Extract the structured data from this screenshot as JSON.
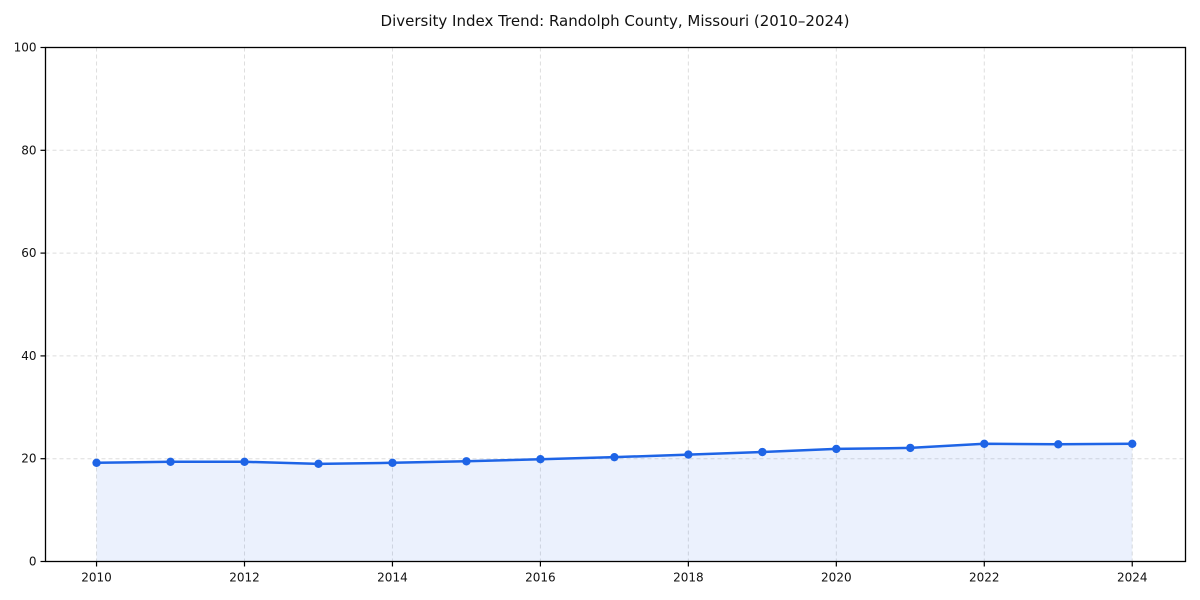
{
  "chart_data": {
    "type": "line",
    "title": "Diversity Index Trend: Randolph County, Missouri (2010–2024)",
    "x": [
      2010,
      2011,
      2012,
      2013,
      2014,
      2015,
      2016,
      2017,
      2018,
      2019,
      2020,
      2021,
      2022,
      2023,
      2024
    ],
    "series": [
      {
        "name": "Diversity Index",
        "values": [
          19.2,
          19.4,
          19.4,
          19.0,
          19.2,
          19.5,
          19.9,
          20.3,
          20.8,
          21.3,
          21.9,
          22.1,
          22.9,
          22.8,
          22.9
        ]
      }
    ],
    "xlabel": "",
    "ylabel": "",
    "xlim": [
      2009.31,
      2024.72
    ],
    "ylim": [
      0,
      100
    ],
    "xticks": [
      2010,
      2012,
      2014,
      2016,
      2018,
      2020,
      2022,
      2024
    ],
    "yticks": [
      0,
      20,
      40,
      60,
      80,
      100
    ],
    "grid": true,
    "grid_style": "dashed",
    "legend": false,
    "area": true,
    "marker": "circle",
    "colors": {
      "line": "#1e64e6",
      "marker": "#1e64e6",
      "area_fill": "#1e64e6",
      "gridline": "#dedede",
      "axis": "#000000",
      "text": "#111111",
      "background": "#ffffff"
    },
    "area_opacity": 0.09
  }
}
